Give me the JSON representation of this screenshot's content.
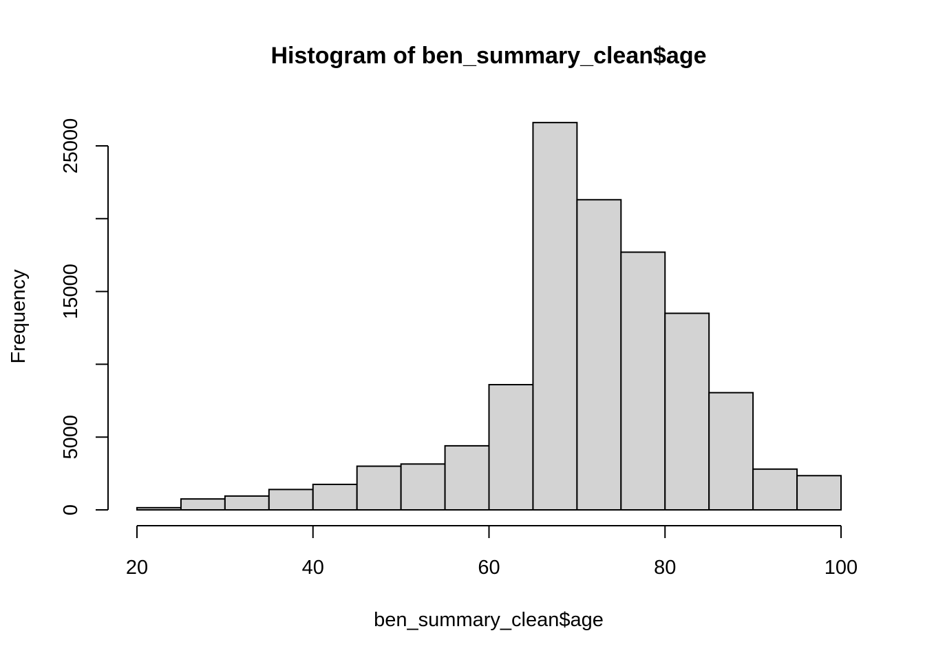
{
  "chart_data": {
    "type": "bar",
    "title": "Histogram of ben_summary_clean$age",
    "xlabel": "ben_summary_clean$age",
    "ylabel": "Frequency",
    "bins": [
      {
        "start": 20,
        "end": 25,
        "value": 150
      },
      {
        "start": 25,
        "end": 30,
        "value": 750
      },
      {
        "start": 30,
        "end": 35,
        "value": 950
      },
      {
        "start": 35,
        "end": 40,
        "value": 1400
      },
      {
        "start": 40,
        "end": 45,
        "value": 1750
      },
      {
        "start": 45,
        "end": 50,
        "value": 3000
      },
      {
        "start": 50,
        "end": 55,
        "value": 3150
      },
      {
        "start": 55,
        "end": 60,
        "value": 4400
      },
      {
        "start": 60,
        "end": 65,
        "value": 8600
      },
      {
        "start": 65,
        "end": 70,
        "value": 26600
      },
      {
        "start": 70,
        "end": 75,
        "value": 21300
      },
      {
        "start": 75,
        "end": 80,
        "value": 17700
      },
      {
        "start": 80,
        "end": 85,
        "value": 13500
      },
      {
        "start": 85,
        "end": 90,
        "value": 8050
      },
      {
        "start": 90,
        "end": 95,
        "value": 2800
      },
      {
        "start": 95,
        "end": 100,
        "value": 2350
      }
    ],
    "x_ticks": [
      20,
      40,
      60,
      80,
      100
    ],
    "x_tick_labels": [
      "20",
      "40",
      "60",
      "80",
      "100"
    ],
    "y_ticks": [
      0,
      5000,
      10000,
      15000,
      20000,
      25000
    ],
    "y_tick_labels": [
      "0",
      "5000",
      "",
      "15000",
      "",
      "25000"
    ],
    "xlim": [
      20,
      100
    ],
    "ylim": [
      0,
      25000
    ],
    "bar_fill": "#d3d3d3",
    "bar_stroke": "#000000",
    "grid": false,
    "legend": "none"
  }
}
